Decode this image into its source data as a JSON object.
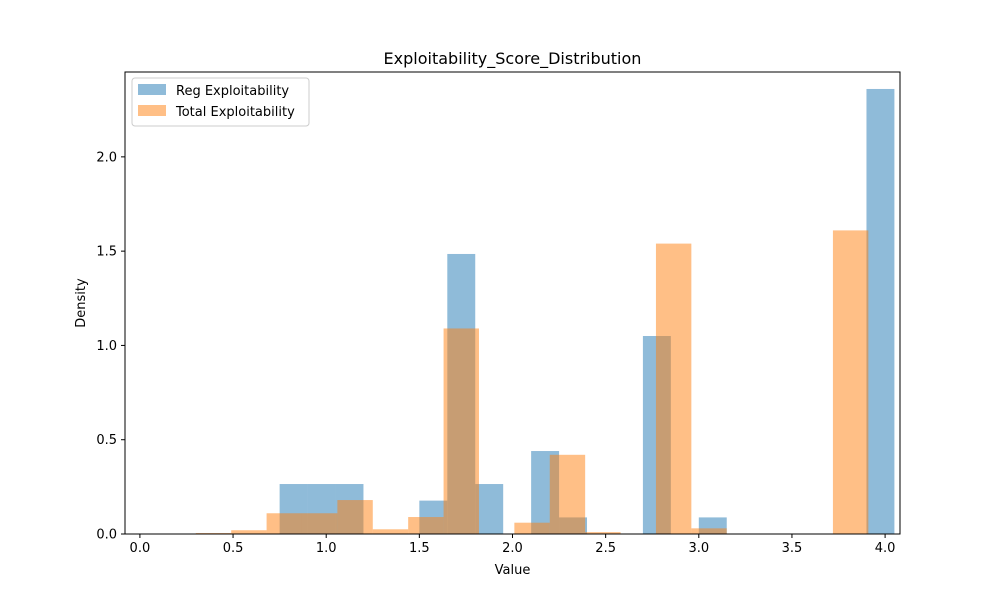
{
  "chart_data": {
    "type": "histogram",
    "title": "Exploitability_Score_Distribution",
    "xlabel": "Value",
    "ylabel": "Density",
    "xlim": [
      -0.08,
      4.08
    ],
    "ylim": [
      0,
      2.45
    ],
    "xticks": [
      "0.0",
      "0.5",
      "1.0",
      "1.5",
      "2.0",
      "2.5",
      "3.0",
      "3.5",
      "4.0"
    ],
    "yticks": [
      "0.0",
      "0.5",
      "1.0",
      "1.5",
      "2.0"
    ],
    "legend_position": "top-left",
    "grid": false,
    "series": [
      {
        "name": "Reg Exploitability",
        "color": "#1f77b4",
        "alpha": 0.5,
        "bin_start": 0.3,
        "bin_width": 0.15,
        "density": [
          0,
          0,
          0,
          0.265,
          0.265,
          0.265,
          0,
          0,
          0.177,
          1.485,
          0.265,
          0,
          0.44,
          0.088,
          0,
          0,
          1.05,
          0,
          0.088,
          0,
          0,
          0,
          0,
          0,
          2.36
        ]
      },
      {
        "name": "Total Exploitability",
        "color": "#ff7f0e",
        "alpha": 0.5,
        "bin_start": 0.3,
        "bin_width": 0.19,
        "density": [
          0.005,
          0.02,
          0.11,
          0.11,
          0.18,
          0.025,
          0.09,
          1.09,
          0.002,
          0.06,
          0.42,
          0.01,
          0.002,
          1.54,
          0.03,
          0,
          0,
          0,
          1.61
        ]
      }
    ]
  }
}
